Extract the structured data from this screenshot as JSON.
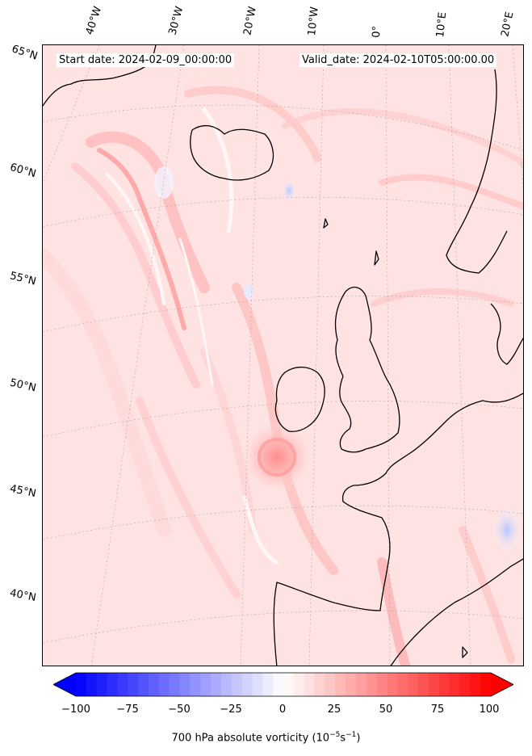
{
  "header": {
    "start_date": "Start date: 2024-02-09_00:00:00",
    "valid_date": "Valid_date: 2024-02-10T05:00:00.00"
  },
  "longitude_labels": [
    "40°W",
    "30°W",
    "20°W",
    "10°W",
    "0°",
    "10°E",
    "20°E"
  ],
  "latitude_labels": [
    "65°N",
    "60°N",
    "55°N",
    "50°N",
    "45°N",
    "40°N"
  ],
  "colorbar": {
    "ticks": [
      "−100",
      "−75",
      "−50",
      "−25",
      "0",
      "25",
      "50",
      "75",
      "100"
    ],
    "label": "700 hPa absolute vorticity (10",
    "label_exp1": "−5",
    "label_mid": "s",
    "label_exp2": "−1",
    "label_end": ")",
    "min": -100,
    "max": 100,
    "extend": "both",
    "colors": {
      "low": "#0000ff",
      "mid": "#ffffff",
      "high": "#ff0000"
    }
  },
  "map": {
    "field": "700 hPa absolute vorticity",
    "projection": "conic",
    "gridlines": true,
    "coastline_color": "#000000",
    "background_color": "#ffe9e9"
  }
}
